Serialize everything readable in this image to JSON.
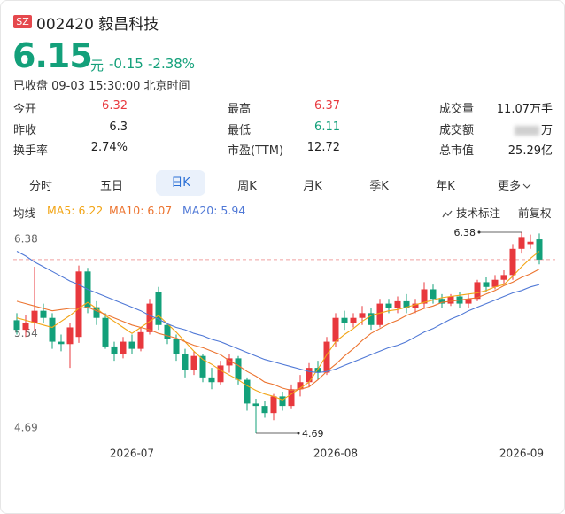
{
  "header": {
    "exchange": "SZ",
    "code_name": "002420 毅昌科技",
    "price": 6.15,
    "currency": "元",
    "change": -0.15,
    "change_pct": "-2.38%",
    "status": "已收盘 09-03 15:30:00 北京时间"
  },
  "stats": [
    [
      {
        "label": "今开",
        "value": 6.32,
        "tone": "up"
      },
      {
        "label": "最高",
        "value": 6.37,
        "tone": "up"
      },
      {
        "label": "成交量",
        "value": "11.07万手"
      }
    ],
    [
      {
        "label": "昨收",
        "value": 6.3
      },
      {
        "label": "最低",
        "value": 6.11,
        "tone": "down"
      },
      {
        "label": "成交额",
        "value": "万",
        "blurred": true
      }
    ],
    [
      {
        "label": "换手率",
        "value": "2.74%"
      },
      {
        "label": "市盈(TTM)",
        "value": 12.72
      },
      {
        "label": "总市值",
        "value": "25.29亿"
      }
    ]
  ],
  "tabs": [
    "分时",
    "五日",
    "日K",
    "周K",
    "月K",
    "季K",
    "年K",
    "更多"
  ],
  "active_tab": 2,
  "indicator": {
    "label": "均线",
    "annotate": "技术标注",
    "adjust": "前复权"
  },
  "chart_data": {
    "type": "candlestick",
    "up_color": "#e8383d",
    "down_color": "#13a07a",
    "categories": [
      null,
      null,
      null,
      null,
      null,
      null,
      null,
      null,
      null,
      null,
      null,
      null,
      null,
      "2026-07",
      null,
      null,
      null,
      null,
      null,
      null,
      null,
      null,
      null,
      null,
      null,
      null,
      null,
      null,
      null,
      null,
      null,
      null,
      null,
      null,
      null,
      null,
      "2026-08",
      null,
      null,
      null,
      null,
      null,
      null,
      null,
      null,
      null,
      null,
      null,
      null,
      null,
      null,
      null,
      null,
      null,
      null,
      null,
      null,
      "2026-09",
      null,
      null
    ],
    "open": [
      5.64,
      5.56,
      5.62,
      5.72,
      5.66,
      5.46,
      5.44,
      5.5,
      6.05,
      5.75,
      5.66,
      5.42,
      5.36,
      5.46,
      5.4,
      5.54,
      5.88,
      5.6,
      5.48,
      5.36,
      5.22,
      5.34,
      5.16,
      5.12,
      5.26,
      5.32,
      5.14,
      4.94,
      4.92,
      4.86,
      5.0,
      4.92,
      5.06,
      5.12,
      5.24,
      5.2,
      5.46,
      5.66,
      5.62,
      5.66,
      5.7,
      5.6,
      5.78,
      5.74,
      5.8,
      5.74,
      5.78,
      5.9,
      5.82,
      5.78,
      5.84,
      5.78,
      5.82,
      5.96,
      5.92,
      5.98,
      6.02,
      6.24,
      6.28,
      6.32
    ],
    "high": [
      5.7,
      5.68,
      6.09,
      5.78,
      5.7,
      5.52,
      5.62,
      6.1,
      6.08,
      5.8,
      5.7,
      5.46,
      5.5,
      5.52,
      5.58,
      5.82,
      5.92,
      5.62,
      5.52,
      5.4,
      5.38,
      5.36,
      5.24,
      5.3,
      5.36,
      5.34,
      5.16,
      4.98,
      4.96,
      5.02,
      5.04,
      5.1,
      5.18,
      5.28,
      5.3,
      5.5,
      5.7,
      5.72,
      5.7,
      5.76,
      5.74,
      5.82,
      5.82,
      5.84,
      5.86,
      5.82,
      5.96,
      5.94,
      5.86,
      5.86,
      5.88,
      5.86,
      5.98,
      6.0,
      6.02,
      6.06,
      6.28,
      6.38,
      6.36,
      6.37
    ],
    "low": [
      5.52,
      5.5,
      5.55,
      5.62,
      5.4,
      5.38,
      5.24,
      5.45,
      5.7,
      5.6,
      5.4,
      5.3,
      5.32,
      5.36,
      5.38,
      5.52,
      5.56,
      5.44,
      5.3,
      5.16,
      5.18,
      5.12,
      5.06,
      5.1,
      5.2,
      5.1,
      4.88,
      4.69,
      4.82,
      4.8,
      4.88,
      4.9,
      5.0,
      5.08,
      5.14,
      5.18,
      5.42,
      5.56,
      5.58,
      5.6,
      5.56,
      5.58,
      5.7,
      5.7,
      5.7,
      5.7,
      5.74,
      5.78,
      5.74,
      5.76,
      5.74,
      5.74,
      5.8,
      5.88,
      5.9,
      5.94,
      5.98,
      6.2,
      6.24,
      6.11
    ],
    "close": [
      5.56,
      5.62,
      5.72,
      5.66,
      5.46,
      5.44,
      5.58,
      6.05,
      5.75,
      5.66,
      5.42,
      5.36,
      5.46,
      5.4,
      5.54,
      5.78,
      5.6,
      5.48,
      5.36,
      5.22,
      5.34,
      5.16,
      5.12,
      5.26,
      5.32,
      5.14,
      4.94,
      4.92,
      4.86,
      5.0,
      4.92,
      5.06,
      5.12,
      5.24,
      5.2,
      5.46,
      5.66,
      5.62,
      5.66,
      5.7,
      5.6,
      5.78,
      5.74,
      5.8,
      5.74,
      5.78,
      5.9,
      5.82,
      5.78,
      5.84,
      5.78,
      5.82,
      5.96,
      5.92,
      5.98,
      6.02,
      6.24,
      6.34,
      6.3,
      6.15
    ],
    "series": [
      {
        "name": "MA5: 6.22",
        "color": "#f2a516",
        "values": [
          5.66,
          5.64,
          5.62,
          5.6,
          5.58,
          5.63,
          5.68,
          5.74,
          5.79,
          5.74,
          5.68,
          5.63,
          5.58,
          5.53,
          5.58,
          5.63,
          5.68,
          5.61,
          5.54,
          5.46,
          5.38,
          5.31,
          5.27,
          5.22,
          5.18,
          5.14,
          5.09,
          5.05,
          5.02,
          5.0,
          4.97,
          5.02,
          5.07,
          5.12,
          5.23,
          5.35,
          5.46,
          5.52,
          5.57,
          5.63,
          5.68,
          5.7,
          5.72,
          5.73,
          5.75,
          5.77,
          5.79,
          5.81,
          5.83,
          5.84,
          5.85,
          5.86,
          5.87,
          5.89,
          5.92,
          5.94,
          6.01,
          6.09,
          6.16,
          6.22
        ]
      },
      {
        "name": "MA10: 6.07",
        "color": "#ec7430",
        "values": [
          5.8,
          5.78,
          5.76,
          5.74,
          5.72,
          5.73,
          5.74,
          5.74,
          5.75,
          5.72,
          5.69,
          5.66,
          5.63,
          5.6,
          5.58,
          5.56,
          5.53,
          5.51,
          5.49,
          5.46,
          5.43,
          5.41,
          5.38,
          5.35,
          5.3,
          5.26,
          5.21,
          5.17,
          5.12,
          5.1,
          5.07,
          5.05,
          5.06,
          5.08,
          5.14,
          5.21,
          5.27,
          5.34,
          5.4,
          5.47,
          5.53,
          5.57,
          5.61,
          5.64,
          5.68,
          5.71,
          5.74,
          5.76,
          5.79,
          5.8,
          5.81,
          5.82,
          5.83,
          5.86,
          5.89,
          5.93,
          5.96,
          6.0,
          6.03,
          6.07
        ]
      },
      {
        "name": "MA20: 5.94",
        "color": "#4f78d6",
        "values": [
          6.22,
          6.18,
          6.13,
          6.09,
          6.05,
          6.01,
          5.97,
          5.94,
          5.9,
          5.87,
          5.84,
          5.81,
          5.78,
          5.75,
          5.72,
          5.68,
          5.65,
          5.61,
          5.58,
          5.56,
          5.53,
          5.51,
          5.48,
          5.46,
          5.43,
          5.4,
          5.37,
          5.34,
          5.31,
          5.29,
          5.27,
          5.25,
          5.23,
          5.21,
          5.2,
          5.21,
          5.23,
          5.26,
          5.29,
          5.32,
          5.35,
          5.38,
          5.41,
          5.43,
          5.46,
          5.5,
          5.54,
          5.57,
          5.61,
          5.65,
          5.68,
          5.72,
          5.75,
          5.78,
          5.81,
          5.84,
          5.87,
          5.89,
          5.92,
          5.94
        ]
      }
    ],
    "ylim": [
      4.69,
      6.38
    ],
    "yticks": [
      6.38,
      {
        "value": 5.535,
        "label": "5.54"
      },
      4.69
    ]
  }
}
